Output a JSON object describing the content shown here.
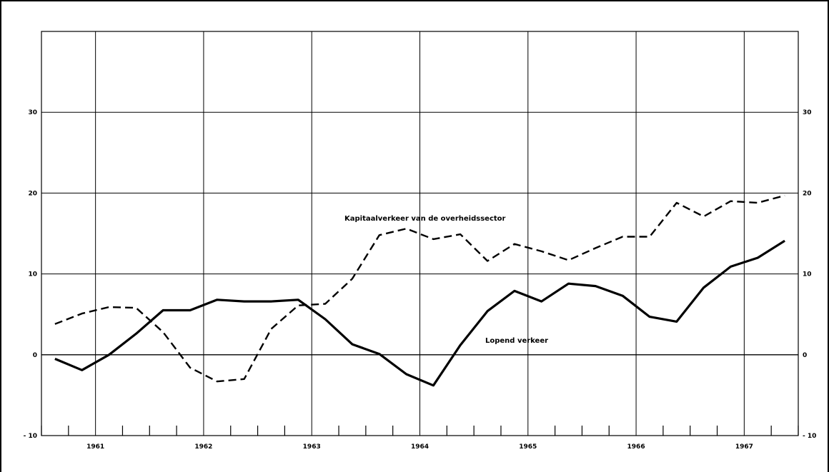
{
  "chart_data": {
    "type": "line",
    "title": "",
    "xlabel": "",
    "ylabel": "",
    "ylim": [
      -10,
      40
    ],
    "xlim": [
      1960.5,
      1967.5
    ],
    "y_ticks": [
      -10,
      0,
      10,
      20,
      30
    ],
    "y_tick_labels": [
      "- 10",
      "0",
      "10",
      "20",
      "30"
    ],
    "year_labels": [
      "1961",
      "1962",
      "1963",
      "1964",
      "1965",
      "1966",
      "1967"
    ],
    "grid": true,
    "legend": "inline",
    "series": [
      {
        "name": "Kapitaalverkeer van de overheidssector",
        "style": "dashed",
        "x": [
          1960.625,
          1960.875,
          1961.125,
          1961.375,
          1961.625,
          1961.875,
          1962.125,
          1962.375,
          1962.625,
          1962.875,
          1963.125,
          1963.375,
          1963.625,
          1963.875,
          1964.125,
          1964.375,
          1964.625,
          1964.875,
          1965.125,
          1965.375,
          1965.625,
          1965.875,
          1966.125,
          1966.375,
          1966.625,
          1966.875,
          1967.125,
          1967.375
        ],
        "values": [
          3.8,
          5.1,
          5.9,
          5.8,
          2.8,
          -1.6,
          -3.3,
          -3.0,
          3.2,
          6.1,
          6.3,
          9.4,
          14.8,
          15.6,
          14.3,
          14.9,
          11.6,
          13.7,
          12.8,
          11.7,
          13.2,
          14.6,
          14.6,
          18.8,
          17.1,
          19.0,
          18.8,
          19.7
        ]
      },
      {
        "name": "Lopend verkeer",
        "style": "solid",
        "x": [
          1960.625,
          1960.875,
          1961.125,
          1961.375,
          1961.625,
          1961.875,
          1962.125,
          1962.375,
          1962.625,
          1962.875,
          1963.125,
          1963.375,
          1963.625,
          1963.875,
          1964.125,
          1964.375,
          1964.625,
          1964.875,
          1965.125,
          1965.375,
          1965.625,
          1965.875,
          1966.125,
          1966.375,
          1966.625,
          1966.875,
          1967.125,
          1967.375
        ],
        "values": [
          -0.5,
          -1.9,
          0.0,
          2.6,
          5.5,
          5.5,
          6.8,
          6.6,
          6.6,
          6.8,
          4.4,
          1.3,
          0.1,
          -2.4,
          -3.8,
          1.2,
          5.4,
          7.9,
          6.6,
          8.8,
          8.5,
          7.3,
          4.7,
          4.1,
          8.3,
          10.9,
          12.0,
          14.1
        ]
      }
    ]
  }
}
